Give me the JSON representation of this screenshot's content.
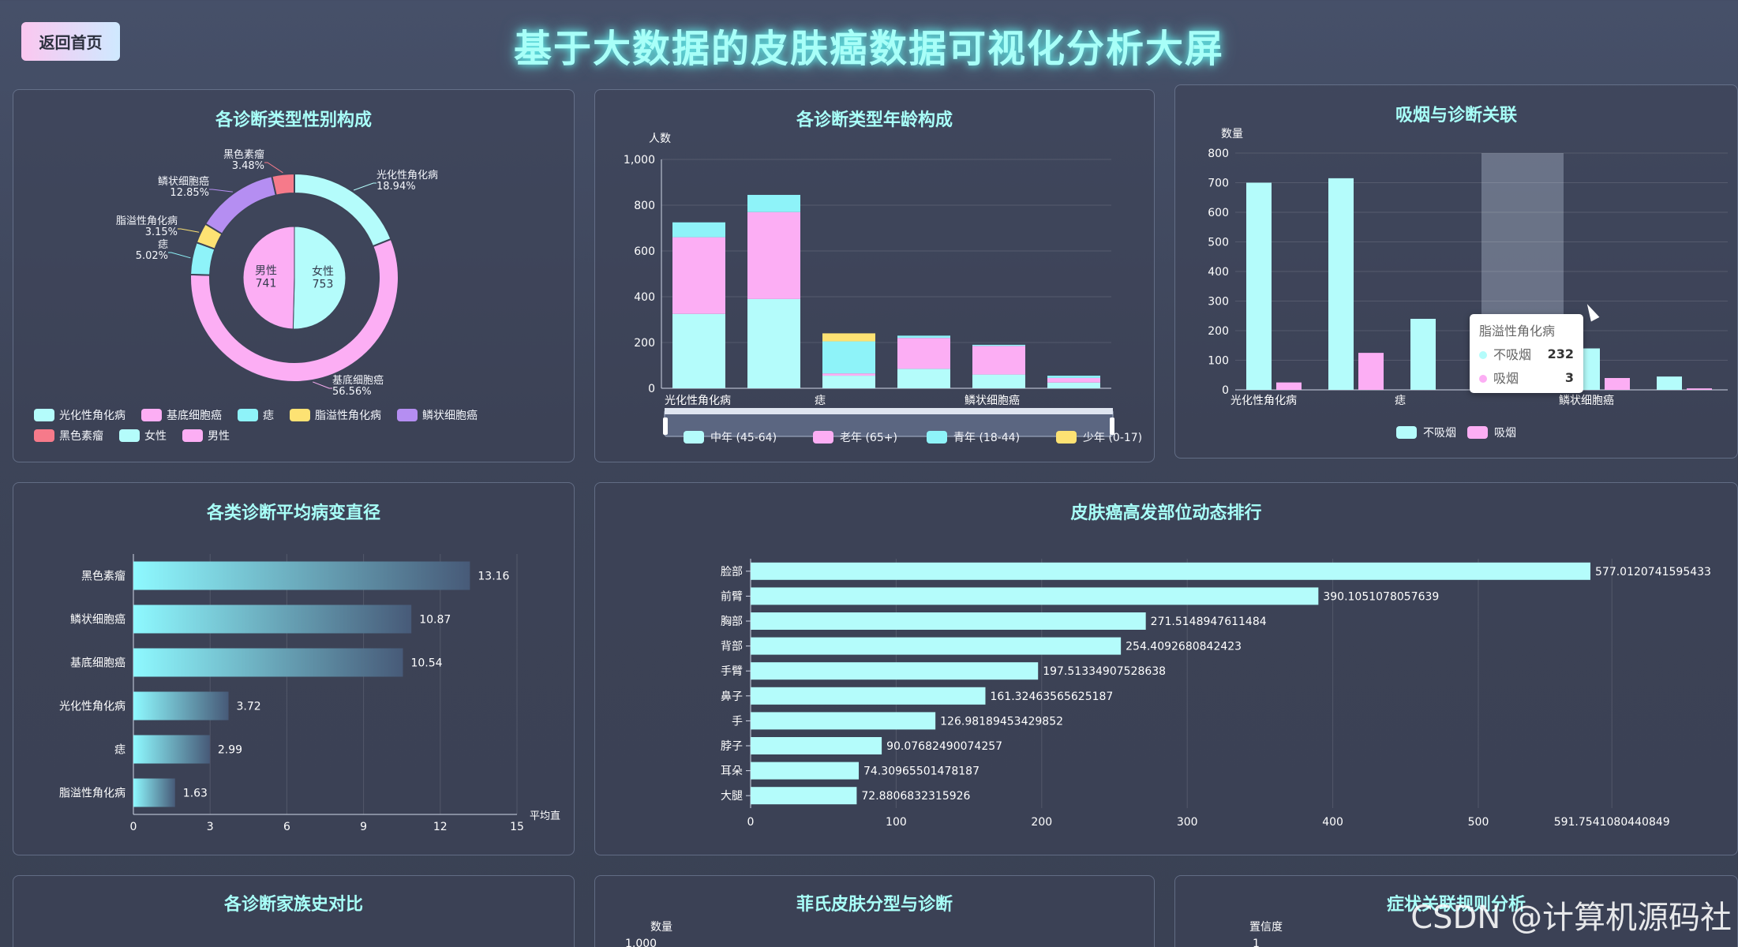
{
  "header": {
    "back_label": "返回首页",
    "title": "基于大数据的皮肤癌数据可视化分析大屏"
  },
  "colors": {
    "cyan": "#b4fcfb",
    "pink": "#fcaef4",
    "light_cyan": "#8ef3f9",
    "yellow": "#fde273",
    "purple": "#b58ef2",
    "red": "#f67a8a",
    "title": "#a8fff8"
  },
  "panels": {
    "gender": {
      "title": "各诊断类型性别构成",
      "outer": [
        {
          "name": "光化性角化病",
          "pct": "18.94%",
          "value": 18.94,
          "color": "#b4fcfb"
        },
        {
          "name": "基底细胞癌",
          "pct": "56.56%",
          "value": 56.56,
          "color": "#fcaef4"
        },
        {
          "name": "痣",
          "pct": "5.02%",
          "value": 5.02,
          "color": "#8ef3f9"
        },
        {
          "name": "脂溢性角化病",
          "pct": "3.15%",
          "value": 3.15,
          "color": "#fde273"
        },
        {
          "name": "鳞状细胞癌",
          "pct": "12.85%",
          "value": 12.85,
          "color": "#b58ef2"
        },
        {
          "name": "黑色素瘤",
          "pct": "3.48%",
          "value": 3.48,
          "color": "#f67a8a"
        }
      ],
      "inner": [
        {
          "name": "女性",
          "value": 753,
          "color": "#b4fcfb"
        },
        {
          "name": "男性",
          "value": 741,
          "color": "#fcaef4"
        }
      ],
      "legend": [
        {
          "label": "光化性角化病",
          "color": "#b4fcfb"
        },
        {
          "label": "基底细胞癌",
          "color": "#fcaef4"
        },
        {
          "label": "痣",
          "color": "#8ef3f9"
        },
        {
          "label": "脂溢性角化病",
          "color": "#fde273"
        },
        {
          "label": "鳞状细胞癌",
          "color": "#b58ef2"
        },
        {
          "label": "黑色素瘤",
          "color": "#f67a8a"
        },
        {
          "label": "女性",
          "color": "#b4fcfb"
        },
        {
          "label": "男性",
          "color": "#fcaef4"
        }
      ]
    },
    "age": {
      "title": "各诊断类型年龄构成",
      "ylabel": "人数",
      "yticks": [
        "0",
        "200",
        "400",
        "600",
        "800",
        "1,000"
      ],
      "xtick_labels": [
        "光化性角化病",
        "痣",
        "鳞状细胞癌"
      ],
      "legend": [
        {
          "label": "中年 (45-64)",
          "color": "#b4fcfb"
        },
        {
          "label": "老年 (65+)",
          "color": "#fcaef4"
        },
        {
          "label": "青年 (18-44)",
          "color": "#8ef3f9"
        },
        {
          "label": "少年 (0-17)",
          "color": "#fde273"
        }
      ]
    },
    "smoking": {
      "title": "吸烟与诊断关联",
      "ylabel": "数量",
      "yticks": [
        "0",
        "100",
        "200",
        "300",
        "400",
        "500",
        "600",
        "700",
        "800"
      ],
      "xtick_labels": [
        "光化性角化病",
        "痣",
        "鳞状细胞癌"
      ],
      "legend": [
        {
          "label": "不吸烟",
          "color": "#b4fcfb"
        },
        {
          "label": "吸烟",
          "color": "#fcaef4"
        }
      ],
      "tooltip": {
        "title": "脂溢性角化病",
        "rows": [
          {
            "label": "不吸烟",
            "value": "232",
            "color": "#b4fcfb"
          },
          {
            "label": "吸烟",
            "value": "3",
            "color": "#fcaef4"
          }
        ]
      }
    },
    "diameter": {
      "title": "各类诊断平均病变直径",
      "xlabel": "平均直",
      "xticks": [
        "0",
        "3",
        "6",
        "9",
        "12",
        "15"
      ]
    },
    "sites": {
      "title": "皮肤癌高发部位动态排行",
      "xticks": [
        "0",
        "100",
        "200",
        "300",
        "400",
        "500"
      ],
      "xmax_label": "591.7541080440849"
    },
    "family": {
      "title": "各诊断家族史对比"
    },
    "fitzpatrick": {
      "title": "菲氏皮肤分型与诊断",
      "ylabel": "数量",
      "ytick_top": "1,000"
    },
    "rules": {
      "title": "症状关联规则分析",
      "ylabel": "置信度",
      "ytick_top": "1"
    }
  },
  "chart_data": [
    {
      "type": "pie",
      "title": "各诊断类型性别构成",
      "series": [
        {
          "name": "诊断类型",
          "categories": [
            "光化性角化病",
            "基底细胞癌",
            "痣",
            "脂溢性角化病",
            "鳞状细胞癌",
            "黑色素瘤"
          ],
          "values": [
            18.94,
            56.56,
            5.02,
            3.15,
            12.85,
            3.48
          ]
        },
        {
          "name": "性别",
          "categories": [
            "女性",
            "男性"
          ],
          "values": [
            753,
            741
          ]
        }
      ]
    },
    {
      "type": "bar",
      "title": "各诊断类型年龄构成",
      "categories": [
        "光化性角化病",
        "基底细胞癌",
        "痣",
        "脂溢性角化病",
        "鳞状细胞癌",
        "黑色素瘤"
      ],
      "series": [
        {
          "name": "中年 (45-64)",
          "values": [
            325,
            390,
            55,
            85,
            60,
            25
          ]
        },
        {
          "name": "老年 (65+)",
          "values": [
            335,
            380,
            10,
            135,
            125,
            20
          ]
        },
        {
          "name": "青年 (18-44)",
          "values": [
            65,
            75,
            140,
            10,
            5,
            10
          ]
        },
        {
          "name": "少年 (0-17)",
          "values": [
            0,
            0,
            35,
            0,
            0,
            0
          ]
        }
      ],
      "ylabel": "人数",
      "ylim": [
        0,
        1000
      ],
      "stacked": true
    },
    {
      "type": "bar",
      "title": "吸烟与诊断关联",
      "categories": [
        "光化性角化病",
        "基底细胞癌",
        "痣",
        "脂溢性角化病",
        "鳞状细胞癌",
        "黑色素瘤"
      ],
      "series": [
        {
          "name": "不吸烟",
          "values": [
            700,
            715,
            240,
            232,
            140,
            45
          ]
        },
        {
          "name": "吸烟",
          "values": [
            25,
            125,
            0,
            3,
            40,
            5
          ]
        }
      ],
      "ylabel": "数量",
      "ylim": [
        0,
        800
      ],
      "highlight_index": 3
    },
    {
      "type": "bar",
      "orientation": "horizontal",
      "title": "各类诊断平均病变直径",
      "categories": [
        "黑色素瘤",
        "鳞状细胞癌",
        "基底细胞癌",
        "光化性角化病",
        "痣",
        "脂溢性角化病"
      ],
      "values": [
        13.16,
        10.87,
        10.54,
        3.72,
        2.99,
        1.63
      ],
      "labels": [
        "13.16",
        "10.87",
        "10.54",
        "3.72",
        "2.99",
        "1.63"
      ],
      "xlabel": "平均直",
      "xlim": [
        0,
        15
      ]
    },
    {
      "type": "bar",
      "orientation": "horizontal",
      "title": "皮肤癌高发部位动态排行",
      "categories": [
        "脸部",
        "前臂",
        "胸部",
        "背部",
        "手臂",
        "鼻子",
        "手",
        "脖子",
        "耳朵",
        "大腿"
      ],
      "values": [
        577.0120741595433,
        390.1051078057639,
        271.5148947611484,
        254.4092680842423,
        197.51334907528638,
        161.32463565625187,
        126.98189453429852,
        90.07682490074257,
        74.30965501478187,
        72.8806832315926
      ],
      "labels": [
        "577.0120741595433",
        "390.1051078057639",
        "271.5148947611484",
        "254.4092680842423",
        "197.51334907528638",
        "161.32463565625187",
        "126.98189453429852",
        "90.07682490074257",
        "74.30965501478187",
        "72.8806832315926"
      ],
      "xlim": [
        0,
        591.7541080440849
      ]
    }
  ],
  "watermark": "CSDN @计算机源码社"
}
